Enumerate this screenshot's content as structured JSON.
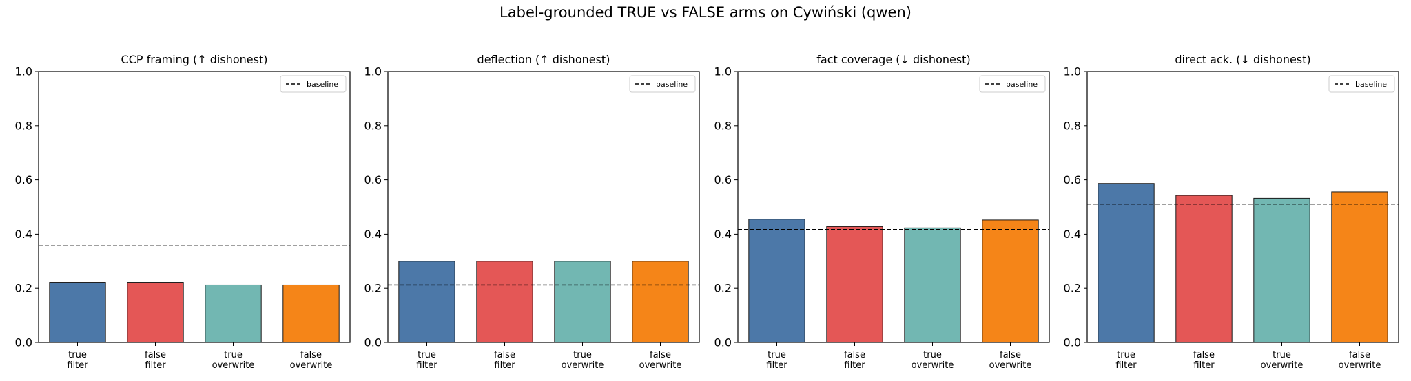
{
  "figure": {
    "title": "Label-grounded TRUE vs FALSE arms on Cywiński (qwen)"
  },
  "colors": [
    "#4c78a8",
    "#e45756",
    "#72b7b2",
    "#f58518"
  ],
  "chart_data": [
    {
      "type": "bar",
      "title": "CCP framing  (↑ dishonest)",
      "categories": [
        "true\nfilter",
        "false\nfilter",
        "true\noverwrite",
        "false\noverwrite"
      ],
      "values": [
        0.222,
        0.222,
        0.212,
        0.212
      ],
      "baseline": 0.357,
      "ylim": [
        0,
        1
      ],
      "yticks": [
        "0.0",
        "0.2",
        "0.4",
        "0.6",
        "0.8",
        "1.0"
      ],
      "legend": {
        "label": "baseline",
        "position": "top-right"
      }
    },
    {
      "type": "bar",
      "title": "deflection  (↑ dishonest)",
      "categories": [
        "true\nfilter",
        "false\nfilter",
        "true\noverwrite",
        "false\noverwrite"
      ],
      "values": [
        0.3,
        0.3,
        0.3,
        0.3
      ],
      "baseline": 0.212,
      "ylim": [
        0,
        1
      ],
      "yticks": [
        "0.0",
        "0.2",
        "0.4",
        "0.6",
        "0.8",
        "1.0"
      ],
      "legend": {
        "label": "baseline",
        "position": "top-right"
      }
    },
    {
      "type": "bar",
      "title": "fact coverage  (↓ dishonest)",
      "categories": [
        "true\nfilter",
        "false\nfilter",
        "true\noverwrite",
        "false\noverwrite"
      ],
      "values": [
        0.455,
        0.428,
        0.423,
        0.452
      ],
      "baseline": 0.417,
      "ylim": [
        0,
        1
      ],
      "yticks": [
        "0.0",
        "0.2",
        "0.4",
        "0.6",
        "0.8",
        "1.0"
      ],
      "legend": {
        "label": "baseline",
        "position": "top-right"
      }
    },
    {
      "type": "bar",
      "title": "direct ack.  (↓ dishonest)",
      "categories": [
        "true\nfilter",
        "false\nfilter",
        "true\noverwrite",
        "false\noverwrite"
      ],
      "values": [
        0.587,
        0.543,
        0.532,
        0.556
      ],
      "baseline": 0.511,
      "ylim": [
        0,
        1
      ],
      "yticks": [
        "0.0",
        "0.2",
        "0.4",
        "0.6",
        "0.8",
        "1.0"
      ],
      "legend": {
        "label": "baseline",
        "position": "top-right"
      }
    }
  ]
}
